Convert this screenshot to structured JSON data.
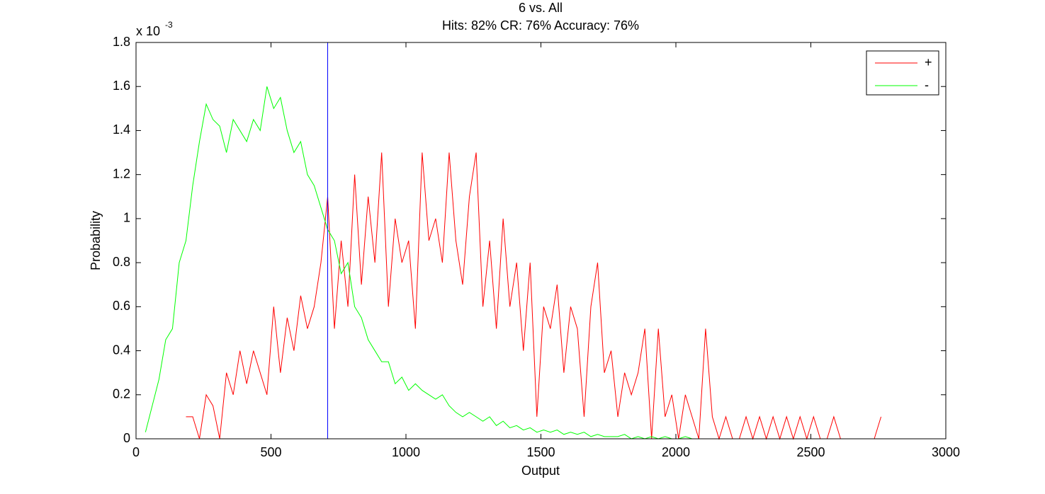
{
  "chart_data": {
    "type": "line",
    "title": "6 vs. All",
    "subtitle": "Hits: 82% CR: 76% Accuracy: 76%",
    "x_label": "Output",
    "y_label": "Probability",
    "y_scale_label": "x 10",
    "y_scale_exponent": "-3",
    "xlim": [
      0,
      3000
    ],
    "xticks": [
      0,
      500,
      1000,
      1500,
      2000,
      2500,
      3000
    ],
    "ylim": [
      0,
      1.8
    ],
    "yticks": [
      0,
      0.2,
      0.4,
      0.6,
      0.8,
      1,
      1.2,
      1.4,
      1.6,
      1.8
    ],
    "grid": false,
    "legend": "top-right",
    "threshold": 710,
    "threshold_color": "#0000ff",
    "series": [
      {
        "name": "+",
        "color": "#ff0000",
        "x": [
          185,
          210,
          235,
          260,
          285,
          310,
          335,
          360,
          385,
          410,
          435,
          460,
          485,
          510,
          535,
          560,
          585,
          610,
          635,
          660,
          685,
          710,
          735,
          760,
          785,
          810,
          835,
          860,
          885,
          910,
          935,
          960,
          985,
          1010,
          1035,
          1060,
          1085,
          1110,
          1135,
          1160,
          1185,
          1210,
          1235,
          1260,
          1285,
          1310,
          1335,
          1360,
          1385,
          1410,
          1435,
          1460,
          1485,
          1510,
          1535,
          1560,
          1585,
          1610,
          1635,
          1660,
          1685,
          1710,
          1735,
          1760,
          1785,
          1810,
          1835,
          1860,
          1885,
          1910,
          1935,
          1960,
          1985,
          2010,
          2035,
          2060,
          2085,
          2110,
          2135,
          2160,
          2185,
          2210,
          2235,
          2260,
          2285,
          2310,
          2335,
          2360,
          2385,
          2410,
          2435,
          2460,
          2485,
          2510,
          2535,
          2560,
          2585,
          2610,
          2635,
          2660,
          2685,
          2710,
          2735,
          2760
        ],
        "values": [
          0.1,
          0.1,
          0,
          0.2,
          0.15,
          0,
          0.3,
          0.2,
          0.4,
          0.25,
          0.4,
          0.3,
          0.2,
          0.6,
          0.3,
          0.55,
          0.4,
          0.65,
          0.5,
          0.6,
          0.8,
          1.1,
          0.5,
          0.9,
          0.6,
          1.2,
          0.7,
          1.1,
          0.8,
          1.3,
          0.6,
          1,
          0.8,
          0.9,
          0.5,
          1.3,
          0.9,
          1,
          0.8,
          1.3,
          0.9,
          0.7,
          1.1,
          1.3,
          0.6,
          0.9,
          0.5,
          1,
          0.6,
          0.8,
          0.4,
          0.8,
          0.1,
          0.6,
          0.5,
          0.7,
          0.3,
          0.6,
          0.5,
          0.1,
          0.6,
          0.8,
          0.3,
          0.4,
          0.1,
          0.3,
          0.2,
          0.3,
          0.5,
          0,
          0.5,
          0.1,
          0.2,
          0,
          0.2,
          0.1,
          0,
          0.5,
          0.1,
          0,
          0.1,
          0,
          0,
          0.1,
          0,
          0.1,
          0,
          0.1,
          0,
          0.1,
          0,
          0.1,
          0,
          0.1,
          0,
          0,
          0.1,
          0,
          0,
          0,
          0,
          0,
          0,
          0.1
        ]
      },
      {
        "name": "-",
        "color": "#00ff00",
        "x": [
          35,
          60,
          85,
          110,
          135,
          160,
          185,
          210,
          235,
          260,
          285,
          310,
          335,
          360,
          385,
          410,
          435,
          460,
          485,
          510,
          535,
          560,
          585,
          610,
          635,
          660,
          685,
          710,
          735,
          760,
          785,
          810,
          835,
          860,
          885,
          910,
          935,
          960,
          985,
          1010,
          1035,
          1060,
          1085,
          1110,
          1135,
          1160,
          1185,
          1210,
          1235,
          1260,
          1285,
          1310,
          1335,
          1360,
          1385,
          1410,
          1435,
          1460,
          1485,
          1510,
          1535,
          1560,
          1585,
          1610,
          1635,
          1660,
          1685,
          1710,
          1735,
          1760,
          1785,
          1810,
          1835,
          1860,
          1885,
          1910,
          1935,
          1960,
          1985,
          2010,
          2035,
          2060,
          2085,
          2110,
          2135,
          2160,
          2185,
          2210
        ],
        "values": [
          0.03,
          0.15,
          0.27,
          0.45,
          0.5,
          0.8,
          0.9,
          1.15,
          1.35,
          1.52,
          1.45,
          1.42,
          1.3,
          1.45,
          1.4,
          1.35,
          1.45,
          1.4,
          1.6,
          1.5,
          1.55,
          1.4,
          1.3,
          1.35,
          1.2,
          1.15,
          1.05,
          0.95,
          0.9,
          0.75,
          0.8,
          0.6,
          0.55,
          0.45,
          0.4,
          0.35,
          0.35,
          0.25,
          0.28,
          0.22,
          0.25,
          0.22,
          0.2,
          0.18,
          0.2,
          0.15,
          0.12,
          0.1,
          0.12,
          0.1,
          0.08,
          0.1,
          0.06,
          0.08,
          0.05,
          0.06,
          0.04,
          0.05,
          0.03,
          0.04,
          0.03,
          0.04,
          0.02,
          0.03,
          0.02,
          0.03,
          0.01,
          0.02,
          0.01,
          0.01,
          0.01,
          0.02,
          0,
          0.01,
          0,
          0.01,
          0,
          0.01,
          0,
          0,
          0.01,
          0,
          0,
          0,
          0,
          0,
          0,
          0
        ]
      }
    ]
  }
}
